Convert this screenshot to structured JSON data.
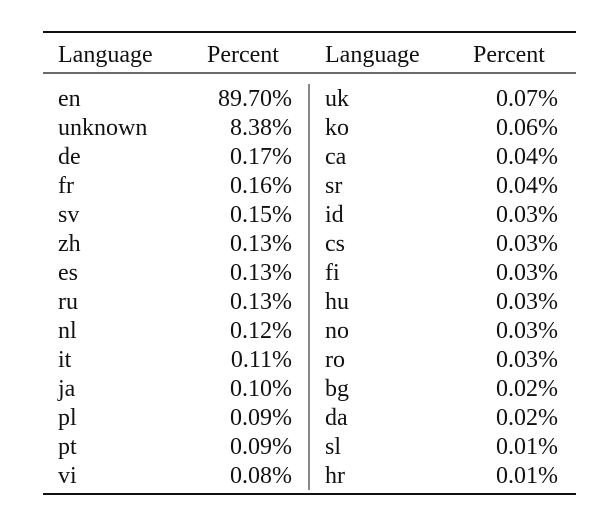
{
  "table": {
    "header": [
      "Language",
      "Percent",
      "Language",
      "Percent"
    ],
    "rows": [
      [
        "en",
        "89.70%",
        "uk",
        "0.07%"
      ],
      [
        "unknown",
        "8.38%",
        "ko",
        "0.06%"
      ],
      [
        "de",
        "0.17%",
        "ca",
        "0.04%"
      ],
      [
        "fr",
        "0.16%",
        "sr",
        "0.04%"
      ],
      [
        "sv",
        "0.15%",
        "id",
        "0.03%"
      ],
      [
        "zh",
        "0.13%",
        "cs",
        "0.03%"
      ],
      [
        "es",
        "0.13%",
        "fi",
        "0.03%"
      ],
      [
        "ru",
        "0.13%",
        "hu",
        "0.03%"
      ],
      [
        "nl",
        "0.12%",
        "no",
        "0.03%"
      ],
      [
        "it",
        "0.11%",
        "ro",
        "0.03%"
      ],
      [
        "ja",
        "0.10%",
        "bg",
        "0.02%"
      ],
      [
        "pl",
        "0.09%",
        "da",
        "0.02%"
      ],
      [
        "pt",
        "0.09%",
        "sl",
        "0.01%"
      ],
      [
        "vi",
        "0.08%",
        "hr",
        "0.01%"
      ]
    ]
  }
}
